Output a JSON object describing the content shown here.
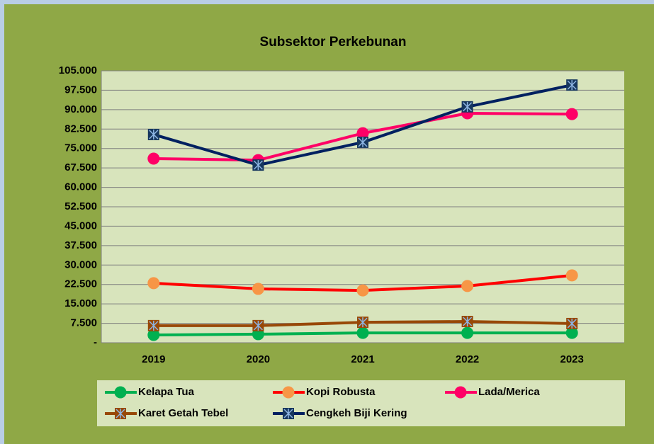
{
  "chart_data": {
    "type": "line",
    "title": "Subsektor Perkebunan",
    "categories": [
      "2019",
      "2020",
      "2021",
      "2022",
      "2023"
    ],
    "series": [
      {
        "name": "Kelapa Tua",
        "color": "#00b050",
        "marker_color": "#00b050",
        "marker": "circle",
        "values": [
          3000,
          3300,
          3800,
          3800,
          3800
        ]
      },
      {
        "name": "Kopi Robusta",
        "color": "#ff0000",
        "marker_color": "#f79646",
        "marker": "circle",
        "values": [
          23000,
          20800,
          20200,
          21900,
          26000
        ]
      },
      {
        "name": "Lada/Merica",
        "color": "#ff0066",
        "marker_color": "#ff0066",
        "marker": "circle",
        "values": [
          71100,
          70500,
          80900,
          88600,
          88300
        ]
      },
      {
        "name": "Karet Getah Tebel",
        "color": "#984807",
        "marker_color": "#984807",
        "marker": "square-x",
        "values": [
          6600,
          6600,
          7900,
          8200,
          7400
        ]
      },
      {
        "name": "Cengkeh Biji Kering",
        "color": "#002060",
        "marker_color": "#17375e",
        "marker": "square-x",
        "values": [
          80400,
          68600,
          77400,
          91100,
          99500
        ]
      }
    ],
    "ylim": [
      0,
      105000
    ],
    "yticks": [
      {
        "value": 0,
        "label": "-"
      },
      {
        "value": 7500,
        "label": "7.500"
      },
      {
        "value": 15000,
        "label": "15.000"
      },
      {
        "value": 22500,
        "label": "22.500"
      },
      {
        "value": 30000,
        "label": "30.000"
      },
      {
        "value": 37500,
        "label": "37.500"
      },
      {
        "value": 45000,
        "label": "45.000"
      },
      {
        "value": 52500,
        "label": "52.500"
      },
      {
        "value": 60000,
        "label": "60.000"
      },
      {
        "value": 67500,
        "label": "67.500"
      },
      {
        "value": 75000,
        "label": "75.000"
      },
      {
        "value": 82500,
        "label": "82.500"
      },
      {
        "value": 90000,
        "label": "90.000"
      },
      {
        "value": 97500,
        "label": "97.500"
      },
      {
        "value": 105000,
        "label": "105.000"
      }
    ],
    "grid": true,
    "legend": "bottom"
  }
}
